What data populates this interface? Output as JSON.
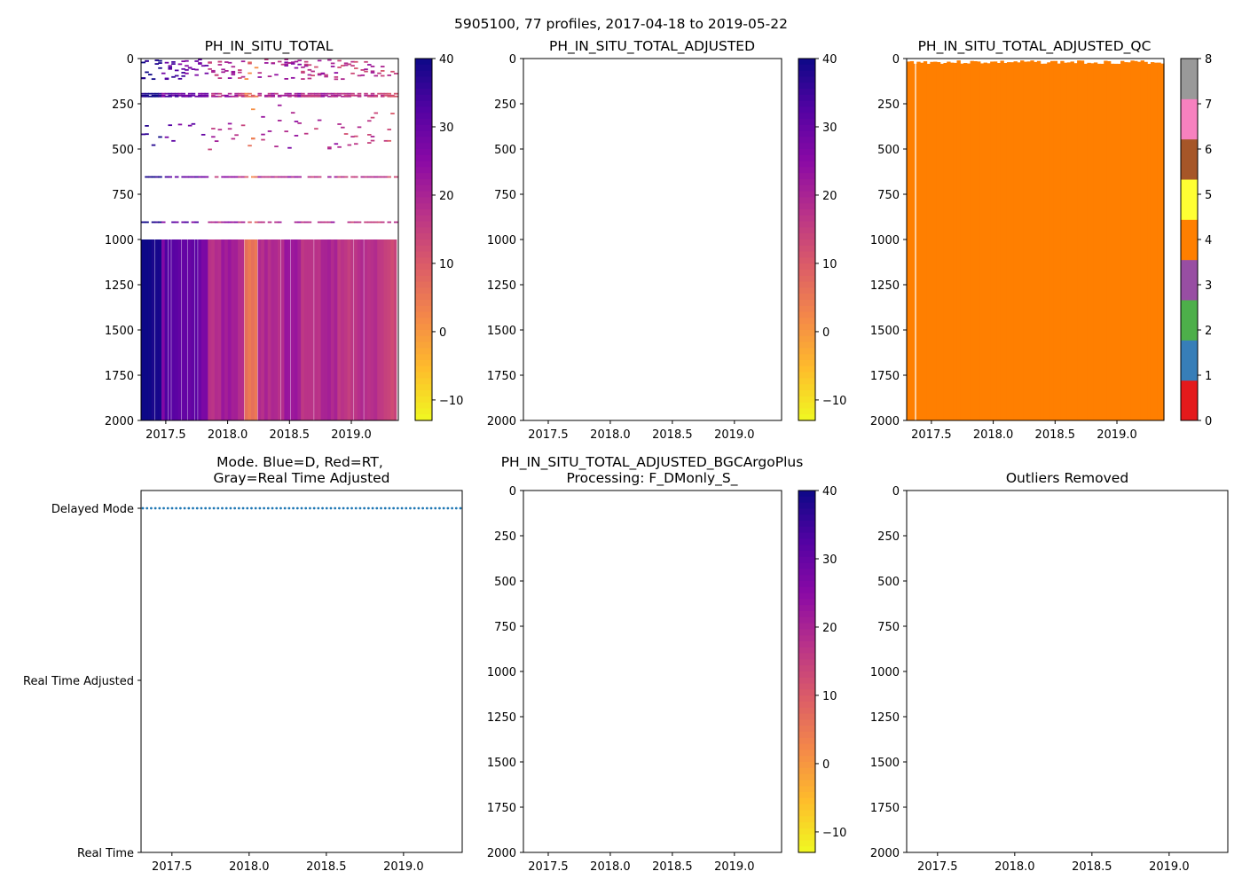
{
  "suptitle": "5905100, 77 profiles, 2017-04-18 to 2019-05-22",
  "colors": {
    "dm_marker": "#1f77b4",
    "qc_fill": "#ff7f00",
    "qc_levels": [
      "#e41a1c",
      "#377eb8",
      "#4daf4a",
      "#984ea3",
      "#ff7f00",
      "#ffff33",
      "#a65628",
      "#f781bf",
      "#999999"
    ]
  },
  "chart_data": [
    {
      "id": "p1",
      "type": "heatmap",
      "title": "PH_IN_SITU_TOTAL",
      "xlim": [
        2017.3,
        2019.38
      ],
      "ylim": [
        2000,
        0
      ],
      "xticks": [
        "2017.5",
        "2018.0",
        "2018.5",
        "2019.0"
      ],
      "yticks": [
        "0",
        "250",
        "500",
        "750",
        "1000",
        "1250",
        "1500",
        "1750",
        "2000"
      ],
      "colorbar": {
        "cmap": "plasma_r",
        "range": [
          -13,
          40
        ],
        "ticks": [
          "40",
          "30",
          "20",
          "10",
          "0",
          "−10"
        ]
      },
      "description_values": {
        "deep_layer_depth": [
          1000,
          2000
        ],
        "discrete_level_depths": [
          190,
          200,
          205,
          650,
          900
        ],
        "deep_values_by_time": [
          {
            "x": 2017.32,
            "v": 40
          },
          {
            "x": 2017.47,
            "v": 25
          },
          {
            "x": 2017.5,
            "v": 32
          },
          {
            "x": 2017.6,
            "v": 30
          },
          {
            "x": 2017.75,
            "v": 28
          },
          {
            "x": 2017.84,
            "v": 18
          },
          {
            "x": 2017.95,
            "v": 22
          },
          {
            "x": 2018.08,
            "v": 17
          },
          {
            "x": 2018.15,
            "v": 6
          },
          {
            "x": 2018.25,
            "v": 19
          },
          {
            "x": 2018.45,
            "v": 22
          },
          {
            "x": 2018.6,
            "v": 17
          },
          {
            "x": 2018.75,
            "v": 20
          },
          {
            "x": 2018.9,
            "v": 16
          },
          {
            "x": 2019.05,
            "v": 18
          },
          {
            "x": 2019.2,
            "v": 15
          },
          {
            "x": 2019.3,
            "v": 14
          }
        ]
      }
    },
    {
      "id": "p2",
      "type": "heatmap",
      "title": "PH_IN_SITU_TOTAL_ADJUSTED",
      "xlim": [
        2017.3,
        2019.38
      ],
      "ylim": [
        2000,
        0
      ],
      "xticks": [
        "2017.5",
        "2018.0",
        "2018.5",
        "2019.0"
      ],
      "yticks": [
        "0",
        "250",
        "500",
        "750",
        "1000",
        "1250",
        "1500",
        "1750",
        "2000"
      ],
      "colorbar": {
        "cmap": "plasma_r",
        "range": [
          -13,
          40
        ],
        "ticks": [
          "40",
          "30",
          "20",
          "10",
          "0",
          "−10"
        ]
      }
    },
    {
      "id": "p3",
      "type": "heatmap",
      "title": "PH_IN_SITU_TOTAL_ADJUSTED_QC",
      "xlim": [
        2017.3,
        2019.38
      ],
      "ylim": [
        2000,
        0
      ],
      "xticks": [
        "2017.5",
        "2018.0",
        "2018.5",
        "2019.0"
      ],
      "yticks": [
        "0",
        "250",
        "500",
        "750",
        "1000",
        "1250",
        "1500",
        "1750",
        "2000"
      ],
      "qc_value": 4,
      "colorbar": {
        "cmap": "qc",
        "range": [
          0,
          8
        ],
        "ticks": [
          "0",
          "1",
          "2",
          "3",
          "4",
          "5",
          "6",
          "7",
          "8"
        ]
      }
    },
    {
      "id": "p4",
      "type": "scatter",
      "title": "Mode. Blue=D, Red=RT,",
      "title2": "Gray=Real Time Adjusted",
      "xlim": [
        2017.3,
        2019.38
      ],
      "xticks": [
        "2017.5",
        "2018.0",
        "2018.5",
        "2019.0"
      ],
      "ycategories": [
        "Delayed Mode",
        "Real Time Adjusted",
        "Real Time"
      ],
      "mode_all_profiles": "Delayed Mode",
      "profile_count": 77
    },
    {
      "id": "p5",
      "type": "heatmap",
      "title": "PH_IN_SITU_TOTAL_ADJUSTED_BGCArgoPlus",
      "title2": "Processing: F_DMonly_S_",
      "xlim": [
        2017.3,
        2019.38
      ],
      "ylim": [
        2000,
        0
      ],
      "xticks": [
        "2017.5",
        "2018.0",
        "2018.5",
        "2019.0"
      ],
      "yticks": [
        "0",
        "250",
        "500",
        "750",
        "1000",
        "1250",
        "1500",
        "1750",
        "2000"
      ],
      "colorbar": {
        "cmap": "plasma_r",
        "range": [
          -13,
          40
        ],
        "ticks": [
          "40",
          "30",
          "20",
          "10",
          "0",
          "−10"
        ]
      }
    },
    {
      "id": "p6",
      "type": "heatmap",
      "title": "Outliers Removed",
      "xlim": [
        2017.3,
        2019.38
      ],
      "ylim": [
        2000,
        0
      ],
      "xticks": [
        "2017.5",
        "2018.0",
        "2018.5",
        "2019.0"
      ],
      "yticks": [
        "0",
        "250",
        "500",
        "750",
        "1000",
        "1250",
        "1500",
        "1750",
        "2000"
      ]
    }
  ]
}
